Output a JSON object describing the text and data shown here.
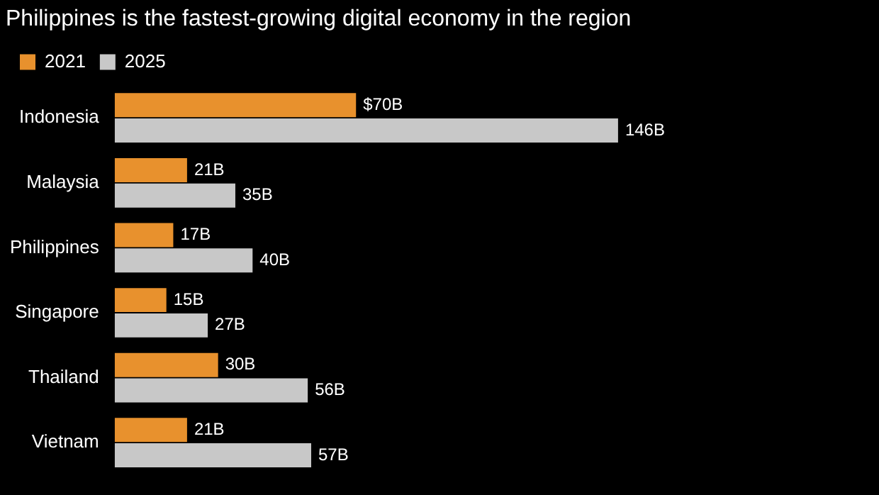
{
  "chart_data": {
    "type": "bar",
    "orientation": "horizontal",
    "title": "Philippines is the fastest-growing digital economy in the region",
    "categories": [
      "Indonesia",
      "Malaysia",
      "Philippines",
      "Singapore",
      "Thailand",
      "Vietnam"
    ],
    "series": [
      {
        "name": "2021",
        "color": "#e8912d",
        "values": [
          70,
          21,
          17,
          15,
          30,
          21
        ],
        "value_labels": [
          "$70B",
          "21B",
          "17B",
          "15B",
          "30B",
          "21B"
        ]
      },
      {
        "name": "2025",
        "color": "#c8c8c8",
        "values": [
          146,
          35,
          40,
          27,
          56,
          57
        ],
        "value_labels": [
          "146B",
          "35B",
          "40B",
          "27B",
          "56B",
          "57B"
        ]
      }
    ],
    "legend": "top left",
    "tick_labels": "y"
  }
}
